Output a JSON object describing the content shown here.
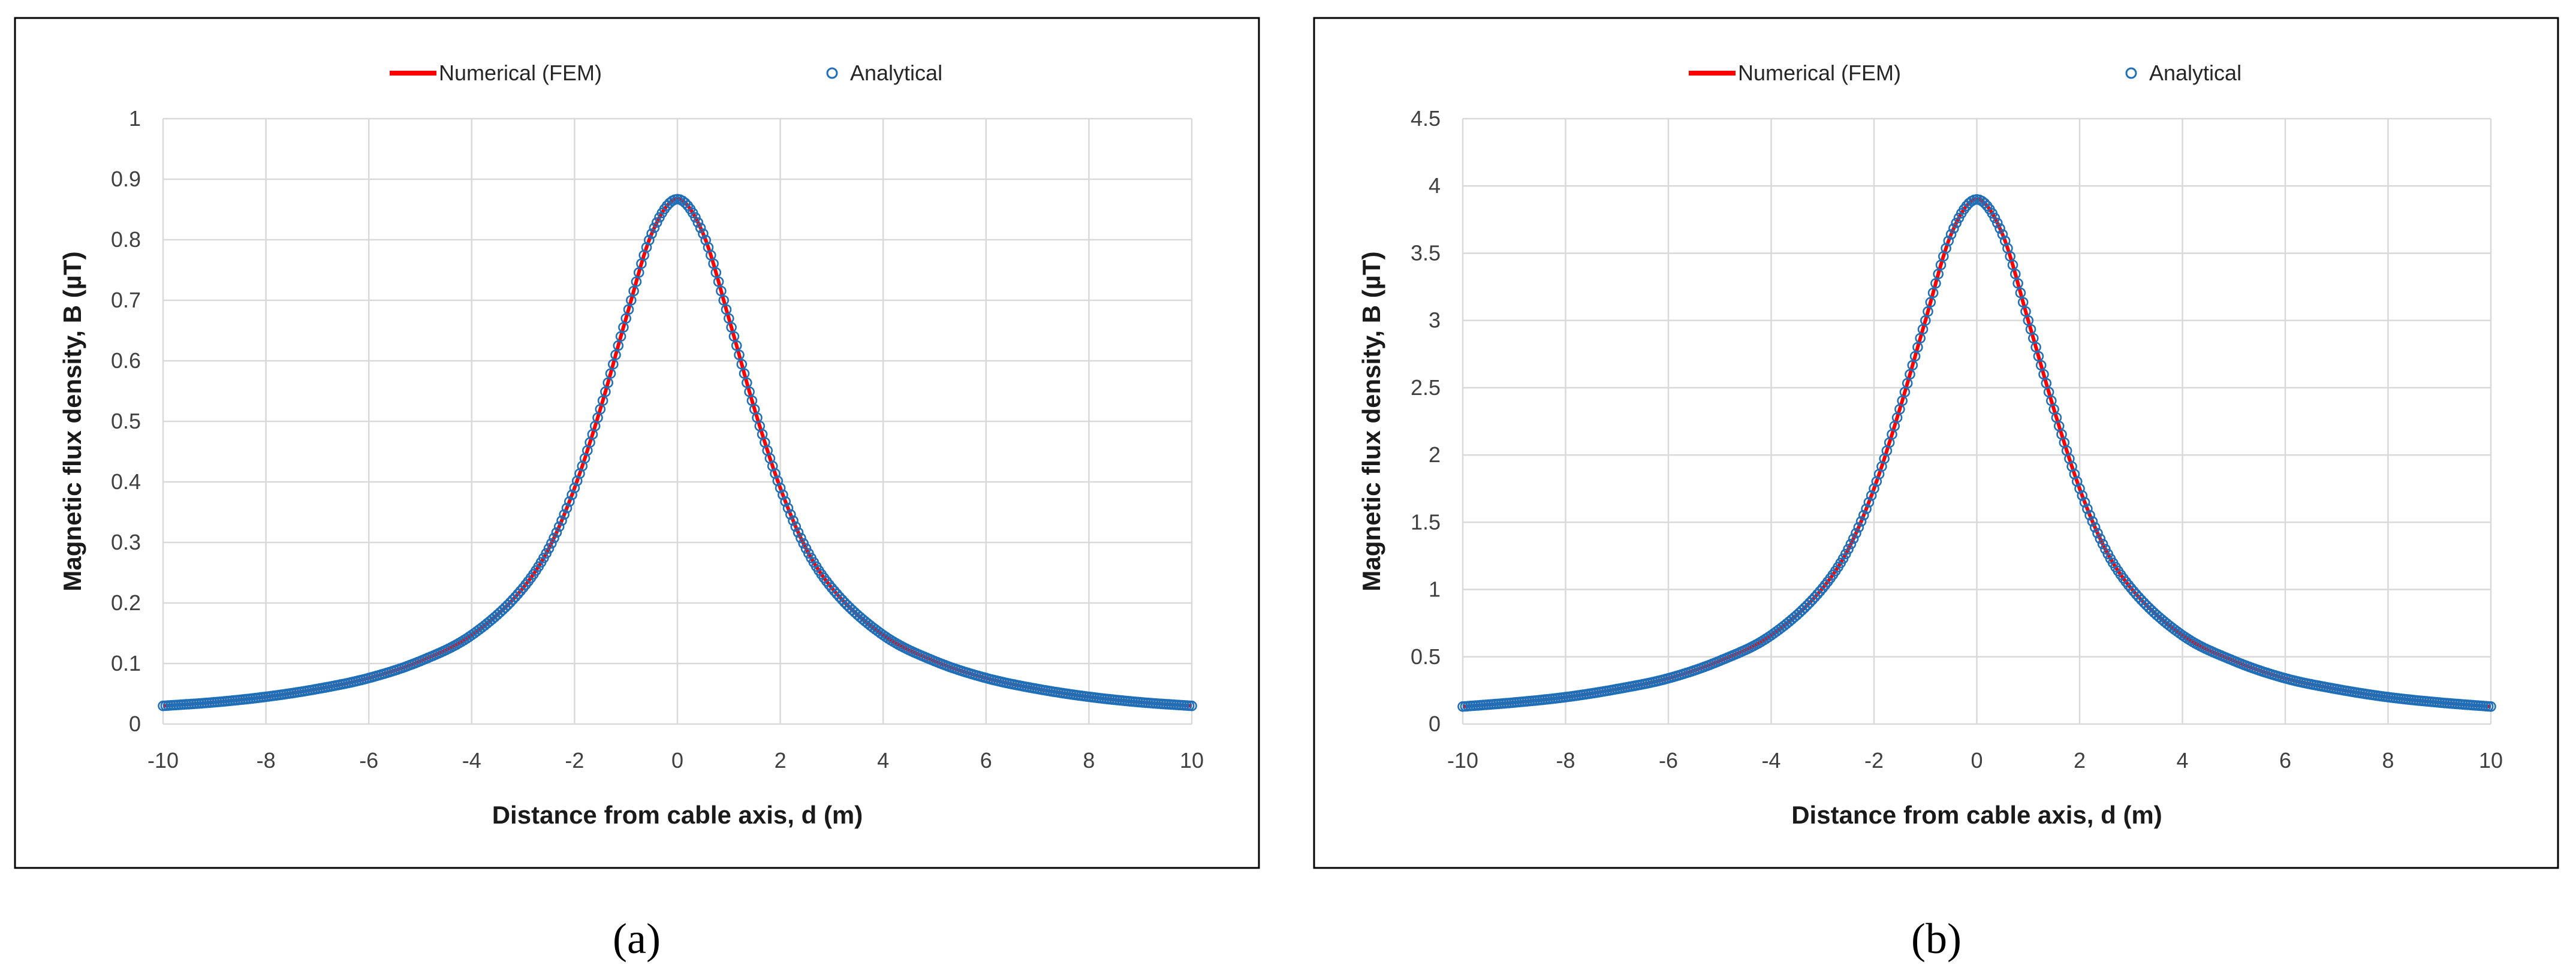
{
  "colors": {
    "numerical": "#ff0000",
    "analytical": "#1f6fb8",
    "grid": "#d9d9d9",
    "frame": "#000000"
  },
  "chart_data": [
    {
      "type": "line",
      "caption": "(a)",
      "xlabel": "Distance from cable axis, d (m)",
      "ylabel": "Magnetic flux density, B (µT)",
      "xlim": [
        -10,
        10
      ],
      "ylim": [
        0,
        1
      ],
      "xticks": [
        "-10",
        "-8",
        "-6",
        "-4",
        "-2",
        "0",
        "2",
        "4",
        "6",
        "8",
        "10"
      ],
      "yticks": [
        "0",
        "0.1",
        "0.2",
        "0.3",
        "0.4",
        "0.5",
        "0.6",
        "0.7",
        "0.8",
        "0.9",
        "1"
      ],
      "grid": true,
      "legend_position": "top",
      "series": [
        {
          "name": "Numerical (FEM)",
          "style": "line",
          "x": [
            -10,
            -9,
            -8,
            -7,
            -6,
            -5,
            -4,
            -3,
            -2.5,
            -2,
            -1.5,
            -1,
            -0.5,
            0,
            0.5,
            1,
            1.5,
            2,
            2.5,
            3,
            4,
            5,
            6,
            7,
            8,
            9,
            10
          ],
          "y": [
            0.03,
            0.036,
            0.045,
            0.058,
            0.076,
            0.104,
            0.147,
            0.225,
            0.29,
            0.39,
            0.52,
            0.67,
            0.81,
            0.867,
            0.81,
            0.67,
            0.52,
            0.39,
            0.29,
            0.225,
            0.147,
            0.104,
            0.076,
            0.058,
            0.045,
            0.036,
            0.03
          ]
        },
        {
          "name": "Analytical",
          "style": "markers",
          "x": [
            -10,
            -9,
            -8,
            -7,
            -6,
            -5,
            -4,
            -3,
            -2.5,
            -2,
            -1.5,
            -1,
            -0.5,
            0,
            0.5,
            1,
            1.5,
            2,
            2.5,
            3,
            4,
            5,
            6,
            7,
            8,
            9,
            10
          ],
          "y": [
            0.03,
            0.036,
            0.045,
            0.058,
            0.076,
            0.104,
            0.147,
            0.225,
            0.29,
            0.39,
            0.52,
            0.67,
            0.81,
            0.867,
            0.81,
            0.67,
            0.52,
            0.39,
            0.29,
            0.225,
            0.147,
            0.104,
            0.076,
            0.058,
            0.045,
            0.036,
            0.03
          ]
        }
      ]
    },
    {
      "type": "line",
      "caption": "(b)",
      "xlabel": "Distance from cable axis, d (m)",
      "ylabel": "Magnetic flux density, B (µT)",
      "xlim": [
        -10,
        10
      ],
      "ylim": [
        0,
        4.5
      ],
      "xticks": [
        "-10",
        "-8",
        "-6",
        "-4",
        "-2",
        "0",
        "2",
        "4",
        "6",
        "8",
        "10"
      ],
      "yticks": [
        "0",
        "0.5",
        "1",
        "1.5",
        "2",
        "2.5",
        "3",
        "3.5",
        "4",
        "4.5"
      ],
      "grid": true,
      "legend_position": "top",
      "series": [
        {
          "name": "Numerical (FEM)",
          "style": "line",
          "x": [
            -10,
            -9,
            -8,
            -7,
            -6,
            -5,
            -4,
            -3,
            -2.5,
            -2,
            -1.5,
            -1,
            -0.5,
            0,
            0.5,
            1,
            1.5,
            2,
            2.5,
            3,
            4,
            5,
            6,
            7,
            8,
            9,
            10
          ],
          "y": [
            0.13,
            0.16,
            0.2,
            0.26,
            0.34,
            0.47,
            0.66,
            1.01,
            1.3,
            1.75,
            2.34,
            3.0,
            3.64,
            3.9,
            3.64,
            3.0,
            2.34,
            1.75,
            1.3,
            1.01,
            0.66,
            0.47,
            0.34,
            0.26,
            0.2,
            0.16,
            0.13
          ]
        },
        {
          "name": "Analytical",
          "style": "markers",
          "x": [
            -10,
            -9,
            -8,
            -7,
            -6,
            -5,
            -4,
            -3,
            -2.5,
            -2,
            -1.5,
            -1,
            -0.5,
            0,
            0.5,
            1,
            1.5,
            2,
            2.5,
            3,
            4,
            5,
            6,
            7,
            8,
            9,
            10
          ],
          "y": [
            0.13,
            0.16,
            0.2,
            0.26,
            0.34,
            0.47,
            0.66,
            1.01,
            1.3,
            1.75,
            2.34,
            3.0,
            3.64,
            3.9,
            3.64,
            3.0,
            2.34,
            1.75,
            1.3,
            1.01,
            0.66,
            0.47,
            0.34,
            0.26,
            0.2,
            0.16,
            0.13
          ]
        }
      ]
    }
  ]
}
